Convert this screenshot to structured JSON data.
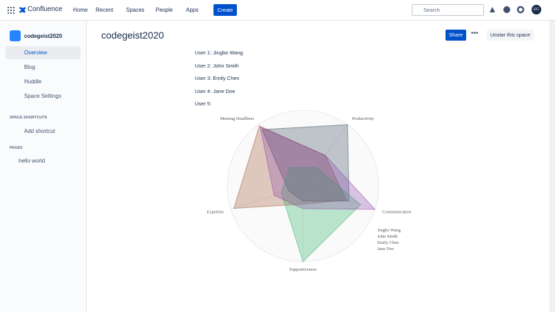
{
  "nav": {
    "logo": "Confluence",
    "items": [
      "Home",
      "Recent",
      "Spaces",
      "People",
      "Apps"
    ],
    "create": "Create",
    "search": "Search",
    "avatar": "EC"
  },
  "sidebar": {
    "space": "codegeist2020",
    "links": [
      "Overview",
      "Blog",
      "Huddle",
      "Space Settings"
    ],
    "shortcuts_heading": "SPACE SHORTCUTS",
    "add_shortcut": "Add shortcut",
    "pages_heading": "PAGES",
    "pages": [
      "hello world"
    ]
  },
  "page": {
    "title": "codegeist2020",
    "share": "Share",
    "unstar": "Unstar this space",
    "users": [
      "User 1: Jingbo Wang",
      "User 2: John Smith",
      "User 3: Emily Chen",
      "User 4: Jane Doe",
      "User 5:"
    ]
  },
  "chart_data": {
    "type": "radar",
    "categories": [
      "Meeting Deadlines",
      "Productivity",
      "Communication",
      "Supportiveness",
      "Expertise"
    ],
    "rlim": [
      0,
      5
    ],
    "rticks": [
      1,
      2,
      3,
      4,
      5
    ],
    "grid": true,
    "legend": "lower right",
    "series": [
      {
        "name": "Jingbo Wang",
        "color": "#a0522d",
        "values": [
          4.9,
          2.5,
          3,
          1.2,
          4.8
        ]
      },
      {
        "name": "John Smith",
        "color": "#34495e",
        "values": [
          4.6,
          5,
          3.2,
          1,
          1
        ]
      },
      {
        "name": "Emily Chen",
        "color": "#27ae60",
        "values": [
          1.5,
          1.5,
          4,
          5,
          1.5
        ]
      },
      {
        "name": "Jane Doe",
        "color": "#8e44ad",
        "values": [
          4.8,
          2.5,
          5,
          1.5,
          2
        ]
      }
    ]
  }
}
